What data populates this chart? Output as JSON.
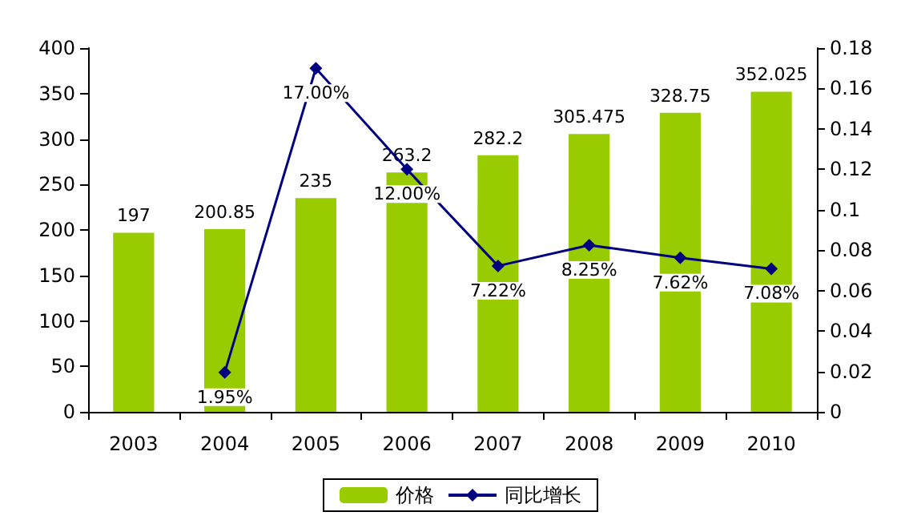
{
  "chart_data": {
    "type": "bar",
    "categories": [
      "2003",
      "2004",
      "2005",
      "2006",
      "2007",
      "2008",
      "2009",
      "2010"
    ],
    "series": [
      {
        "name": "价格",
        "color": "#99cc00",
        "values": [
          197,
          200.85,
          235,
          263.2,
          282.2,
          305.475,
          328.75,
          352.025
        ],
        "value_labels": [
          "197",
          "200.85",
          "235",
          "263.2",
          "282.2",
          "305.475",
          "328.75",
          "352.025"
        ]
      },
      {
        "name": "同比增长",
        "type": "line",
        "axis": "y2",
        "color": "#000080",
        "marker": "diamond",
        "values": [
          null,
          0.0195,
          0.17,
          0.12,
          0.0722,
          0.0825,
          0.0762,
          0.0708
        ],
        "value_labels": [
          null,
          "1.95%",
          "17.00%",
          "12.00%",
          "7.22%",
          "8.25%",
          "7.62%",
          "7.08%"
        ]
      }
    ],
    "ylim": [
      0,
      400
    ],
    "yticks": [
      0,
      50,
      100,
      150,
      200,
      250,
      300,
      350,
      400
    ],
    "y2lim": [
      0,
      0.18
    ],
    "y2ticks": [
      0,
      0.02,
      0.04,
      0.06,
      0.08,
      0.1,
      0.12,
      0.14,
      0.16,
      0.18
    ],
    "legend": "bottom",
    "grid": false
  }
}
